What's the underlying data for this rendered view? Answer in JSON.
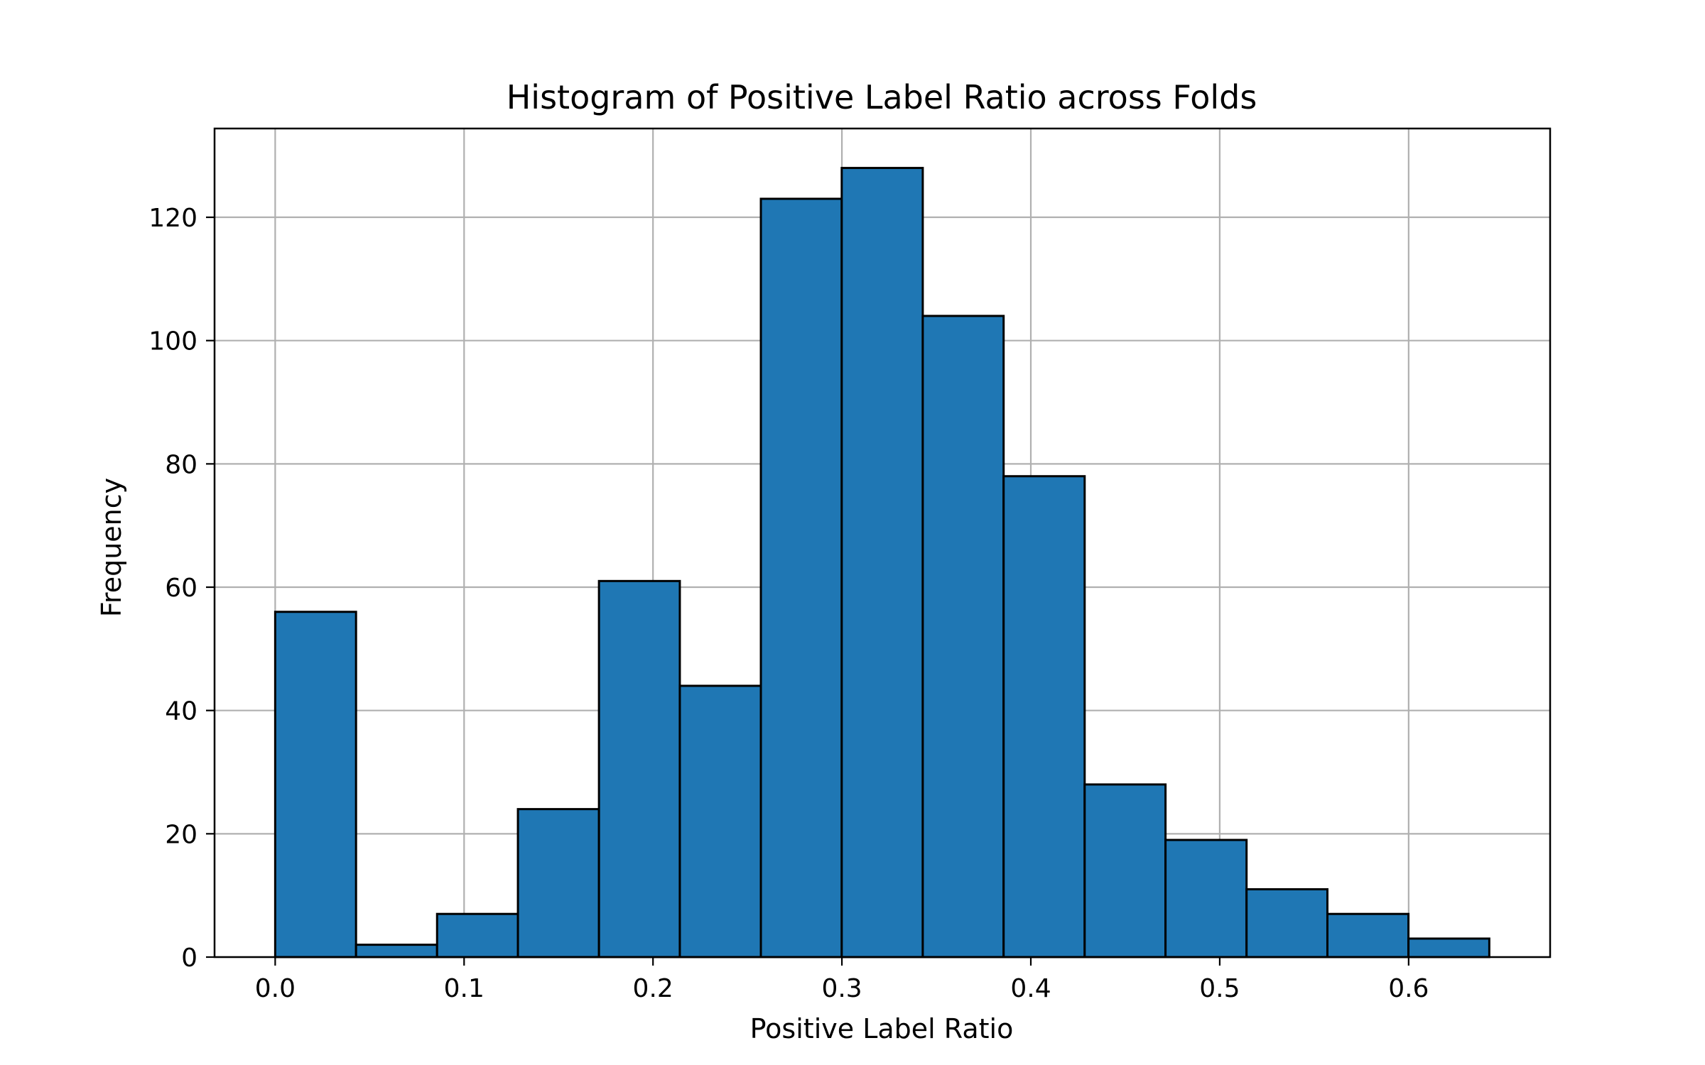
{
  "chart_data": {
    "type": "bar",
    "title": "Histogram of Positive Label Ratio across Folds",
    "xlabel": "Positive Label Ratio",
    "ylabel": "Frequency",
    "bin_edges": [
      0.0,
      0.0428,
      0.0857,
      0.1285,
      0.1714,
      0.2142,
      0.2571,
      0.2999,
      0.3428,
      0.3856,
      0.4285,
      0.4713,
      0.5142,
      0.557,
      0.5999,
      0.6427
    ],
    "values": [
      56,
      2,
      7,
      24,
      61,
      44,
      123,
      128,
      104,
      78,
      28,
      19,
      11,
      7,
      3
    ],
    "xlim": [
      -0.0321,
      0.6749
    ],
    "ylim": [
      0,
      134.4
    ],
    "x_ticks": [
      0.0,
      0.1,
      0.2,
      0.3,
      0.4,
      0.5,
      0.6
    ],
    "x_tick_labels": [
      "0.0",
      "0.1",
      "0.2",
      "0.3",
      "0.4",
      "0.5",
      "0.6"
    ],
    "y_ticks": [
      0,
      20,
      40,
      60,
      80,
      100,
      120
    ],
    "y_tick_labels": [
      "0",
      "20",
      "40",
      "60",
      "80",
      "100",
      "120"
    ],
    "grid": true,
    "bar_color": "#1f77b4",
    "edge_color": "#000000",
    "grid_color": "#b0b0b0"
  }
}
